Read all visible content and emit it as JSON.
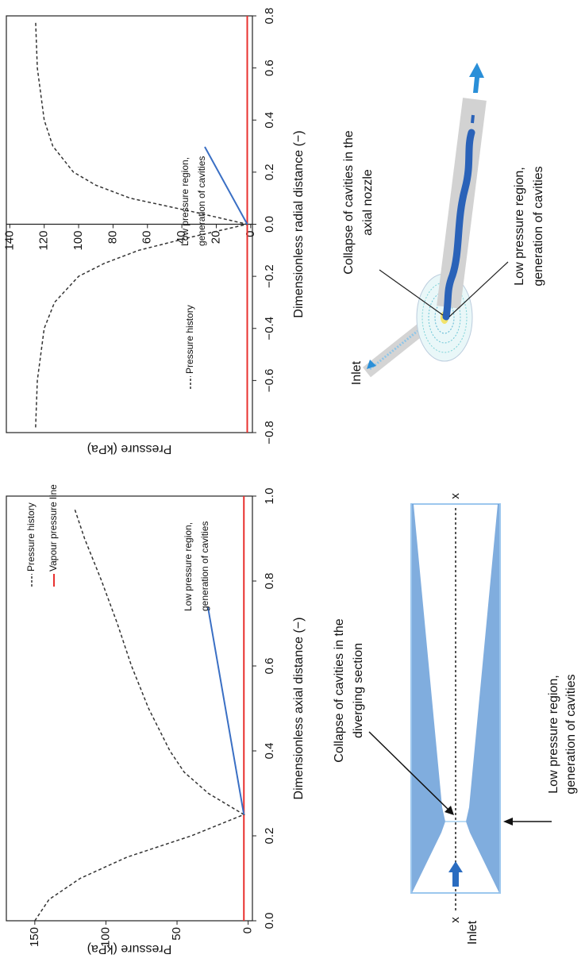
{
  "chart_data": [
    {
      "type": "line",
      "x_label": "Dimensionless axial distance (−)",
      "y_label": "Pressure (kPa)",
      "x": [
        0,
        0.05,
        0.1,
        0.15,
        0.2,
        0.25,
        0.3,
        0.35,
        0.4,
        0.5,
        0.6,
        0.7,
        0.8,
        0.9,
        0.97
      ],
      "series": [
        {
          "name": "Pressure history",
          "color": "#333333",
          "dash": true,
          "values": [
            150,
            140,
            118,
            85,
            40,
            3,
            28,
            45,
            55,
            70,
            82,
            92,
            103,
            115,
            122
          ]
        }
      ],
      "reference_line": {
        "name": "Vapour pressure line",
        "value": 3,
        "color": "#e8312f"
      },
      "annotation": {
        "text": [
          "Low pressure region,",
          "generation of cavities"
        ],
        "color": "#3a6fc4"
      },
      "xlim": [
        0,
        1
      ],
      "xticks": [
        {
          "value": 0,
          "label": "0.0"
        },
        0.2,
        0.4,
        0.6,
        0.8,
        {
          "value": 1,
          "label": "1.0"
        }
      ],
      "ylim": [
        -3,
        170
      ],
      "yticks": [
        0,
        50,
        100,
        150
      ]
    },
    {
      "type": "line",
      "x_label": "Dimensionless radial distance (−)",
      "y_label": "Pressure (kPa)",
      "x": [
        -0.78,
        -0.6,
        -0.4,
        -0.3,
        -0.2,
        -0.15,
        -0.1,
        -0.05,
        0,
        0.05,
        0.1,
        0.15,
        0.2,
        0.3,
        0.4,
        0.6,
        0.78
      ],
      "series": [
        {
          "name": "Pressure history",
          "color": "#333333",
          "dash": true,
          "values": [
            125,
            124,
            120,
            114,
            100,
            85,
            65,
            35,
            2,
            35,
            70,
            90,
            103,
            115,
            120,
            124,
            125
          ]
        }
      ],
      "reference_line": {
        "value": 2,
        "color": "#e8312f"
      },
      "annotation": {
        "text": [
          "Low pressure region,",
          "generation of cavities"
        ],
        "color": "#3a6fc4"
      },
      "xlim": [
        -0.8,
        0.8
      ],
      "xticks": [
        {
          "value": -0.8,
          "label": "−0.8"
        },
        {
          "value": -0.6,
          "label": "−0.6"
        },
        {
          "value": -0.4,
          "label": "−0.4"
        },
        {
          "value": -0.2,
          "label": "−0.2"
        },
        {
          "value": 0,
          "label": "0.0"
        },
        0.2,
        0.4,
        0.6,
        0.8
      ],
      "ylim": [
        -1,
        142
      ],
      "yticks": [
        0,
        20,
        40,
        60,
        80,
        100,
        120,
        140
      ]
    }
  ],
  "diagrams": [
    {
      "inlet": "Inlet",
      "axis_start": "x",
      "axis_end": "x",
      "collapse": [
        "Collapse of cavities in the",
        "diverging section"
      ],
      "low_pressure": [
        "Low pressure region,",
        "generation of cavities"
      ]
    },
    {
      "inlet": "Inlet",
      "collapse": [
        "Collapse of cavities in the",
        "axial nozzle"
      ],
      "low_pressure": [
        "Low pressure region,",
        "generation of cavities"
      ]
    }
  ]
}
